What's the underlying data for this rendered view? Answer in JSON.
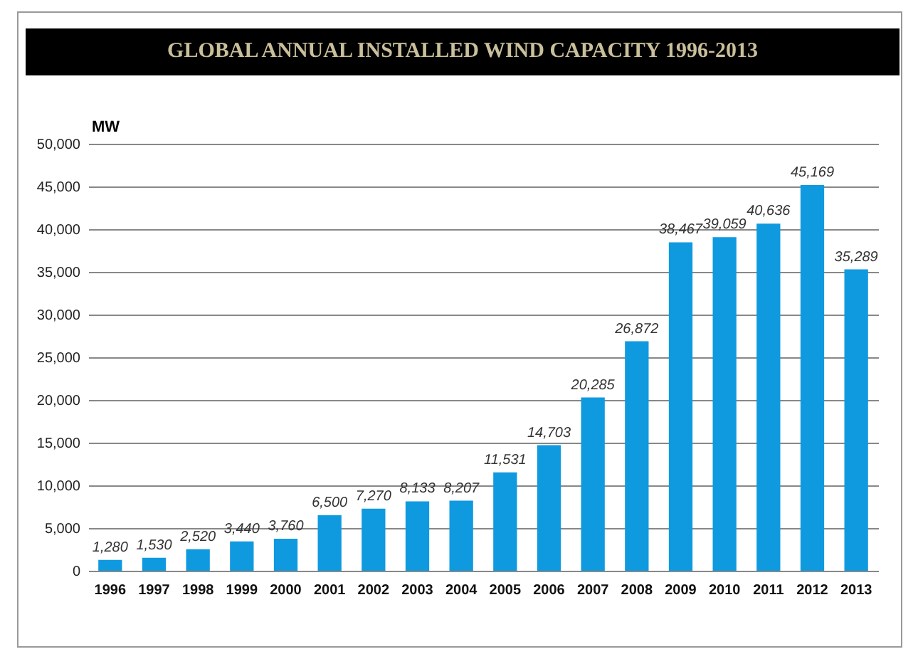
{
  "chart_data": {
    "type": "bar",
    "title": "GLOBAL ANNUAL INSTALLED WIND CAPACITY 1996-2013",
    "ylabel": "MW",
    "categories": [
      "1996",
      "1997",
      "1998",
      "1999",
      "2000",
      "2001",
      "2002",
      "2003",
      "2004",
      "2005",
      "2006",
      "2007",
      "2008",
      "2009",
      "2010",
      "2011",
      "2012",
      "2013"
    ],
    "values": [
      1280,
      1530,
      2520,
      3440,
      3760,
      6500,
      7270,
      8133,
      8207,
      11531,
      14703,
      20285,
      26872,
      38467,
      39059,
      40636,
      45169,
      35289
    ],
    "value_labels": [
      "1,280",
      "1,530",
      "2,520",
      "3,440",
      "3,760",
      "6,500",
      "7,270",
      "8,133",
      "8,207",
      "11,531",
      "14,703",
      "20,285",
      "26,872",
      "38,467",
      "39,059",
      "40,636",
      "45,169",
      "35,289"
    ],
    "color": "#0f9ae0",
    "ylim": [
      0,
      50000
    ],
    "yticks": [
      0,
      {
        "value": 5000,
        "label": "5,000"
      },
      {
        "value": 10000,
        "label": "10,000"
      },
      {
        "value": 15000,
        "label": "15,000"
      },
      {
        "value": 20000,
        "label": "20,000"
      },
      {
        "value": 25000,
        "label": "25,000"
      },
      {
        "value": 30000,
        "label": "30,000"
      },
      {
        "value": 35000,
        "label": "35,000"
      },
      {
        "value": 40000,
        "label": "40,000"
      },
      {
        "value": 45000,
        "label": "45,000"
      },
      {
        "value": 50000,
        "label": "50,000"
      }
    ],
    "grid": "y"
  }
}
